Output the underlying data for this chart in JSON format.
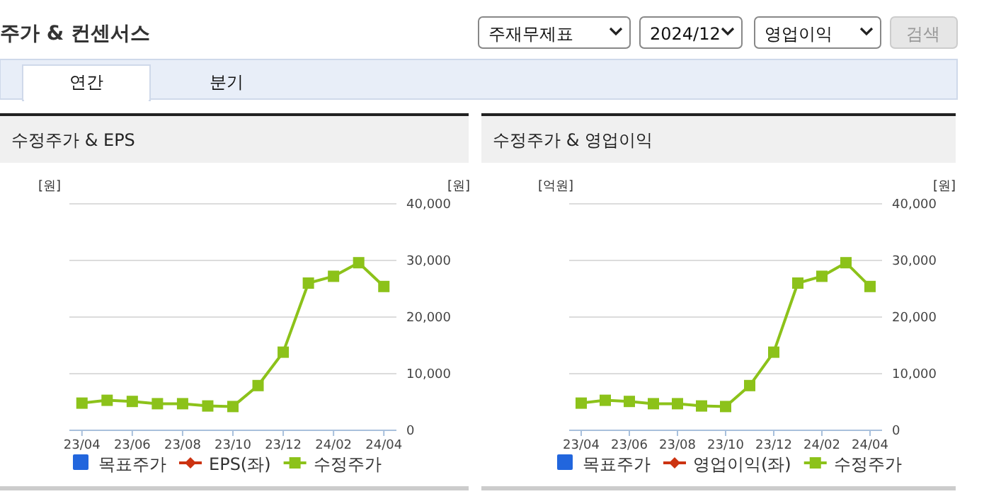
{
  "chart_data": [
    {
      "type": "other",
      "title": "주가 & 컨센서스",
      "annotations": [
        "주재무제표",
        "2024/12",
        "영업이익",
        "검색",
        "연간",
        "분기"
      ]
    },
    {
      "type": "line",
      "title": "수정주가 & EPS",
      "ylabel": "[원]",
      "y2label": "[원]",
      "categories": [
        "23/04",
        null,
        "23/06",
        null,
        "23/08",
        null,
        "23/10",
        null,
        "23/12",
        null,
        "24/02",
        null,
        "24/04"
      ],
      "y2lim": [
        0,
        40000
      ],
      "y2ticks": [
        0,
        {
          "value": 10000,
          "label": "10,000"
        },
        {
          "value": 20000,
          "label": "20,000"
        },
        {
          "value": 30000,
          "label": "30,000"
        },
        {
          "value": 40000,
          "label": "40,000"
        }
      ],
      "grid": "y",
      "legend": "bottom",
      "series": [
        {
          "name": "목표주가",
          "type": "bar",
          "color": "#2266dd",
          "values": [
            null,
            null,
            null,
            null,
            null,
            null,
            null,
            null,
            null,
            null,
            null,
            null,
            null
          ]
        },
        {
          "name": "EPS(좌)",
          "type": "line",
          "color": "#cc3311",
          "marker": "diamond",
          "values": [
            null,
            null,
            null,
            null,
            null,
            null,
            null,
            null,
            null,
            null,
            null,
            null,
            null
          ]
        },
        {
          "name": "수정주가",
          "type": "line",
          "color": "#8cc21a",
          "marker": "square",
          "axis": "y2",
          "values": [
            4800,
            5300,
            5100,
            4700,
            4700,
            4300,
            4200,
            7900,
            13800,
            26000,
            27200,
            29600,
            25400
          ]
        }
      ]
    },
    {
      "type": "line",
      "title": "수정주가 & 영업이익",
      "ylabel": "[억원]",
      "y2label": "[원]",
      "categories": [
        "23/04",
        null,
        "23/06",
        null,
        "23/08",
        null,
        "23/10",
        null,
        "23/12",
        null,
        "24/02",
        null,
        "24/04"
      ],
      "y2lim": [
        0,
        40000
      ],
      "y2ticks": [
        0,
        {
          "value": 10000,
          "label": "10,000"
        },
        {
          "value": 20000,
          "label": "20,000"
        },
        {
          "value": 30000,
          "label": "30,000"
        },
        {
          "value": 40000,
          "label": "40,000"
        }
      ],
      "grid": "y",
      "legend": "bottom",
      "series": [
        {
          "name": "목표주가",
          "type": "bar",
          "color": "#2266dd",
          "values": [
            null,
            null,
            null,
            null,
            null,
            null,
            null,
            null,
            null,
            null,
            null,
            null,
            null
          ]
        },
        {
          "name": "영업이익(좌)",
          "type": "line",
          "color": "#cc3311",
          "marker": "diamond",
          "values": [
            null,
            null,
            null,
            null,
            null,
            null,
            null,
            null,
            null,
            null,
            null,
            null,
            null
          ]
        },
        {
          "name": "수정주가",
          "type": "line",
          "color": "#8cc21a",
          "marker": "square",
          "axis": "y2",
          "values": [
            4800,
            5300,
            5100,
            4700,
            4700,
            4300,
            4200,
            7900,
            13800,
            26000,
            27200,
            29600,
            25400
          ]
        }
      ]
    }
  ]
}
